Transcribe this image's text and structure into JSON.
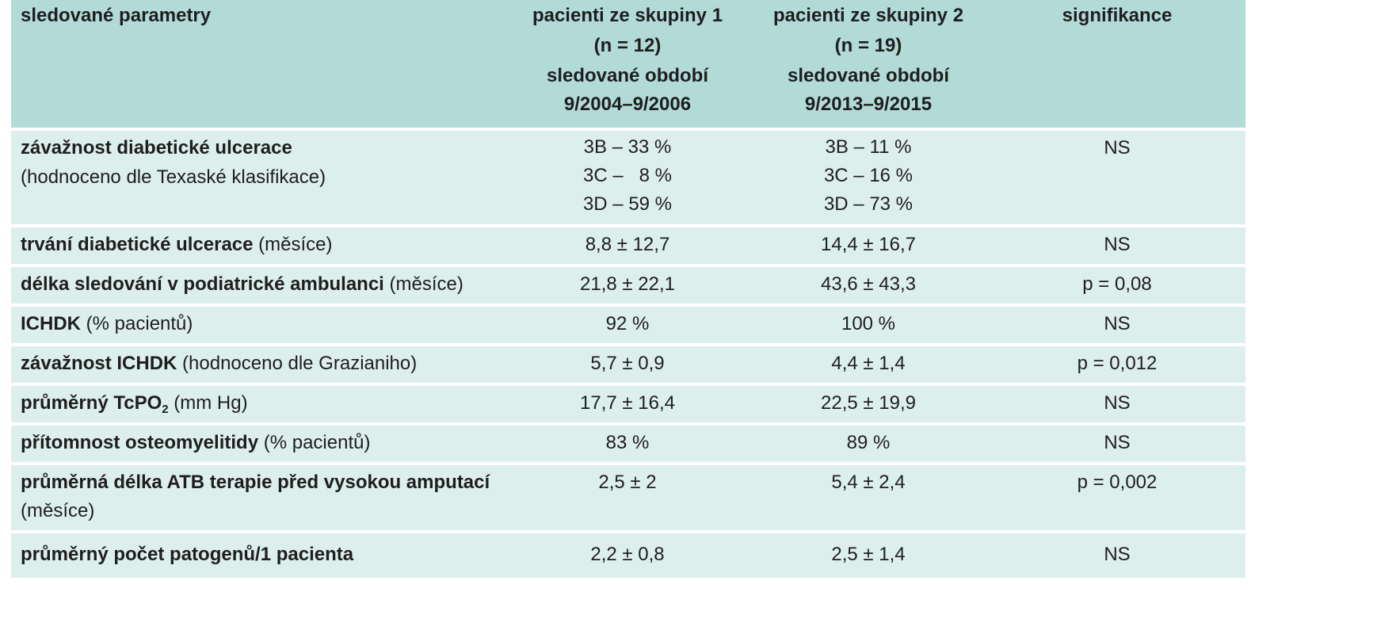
{
  "header": {
    "param": "sledované parametry",
    "group1": {
      "title": "pacienti ze skupiny 1",
      "n": "(n = 12)",
      "period_label": "sledované období",
      "period": "9/2004–9/2006"
    },
    "group2": {
      "title": "pacienti ze skupiny 2",
      "n": "(n = 19)",
      "period_label": "sledované období",
      "period": "9/2013–9/2015"
    },
    "sig": "signifikance"
  },
  "rows": {
    "r0": {
      "bold": "závažnost diabetické ulcerace",
      "note": "(hodnoceno dle Texaské klasifikace)",
      "g1": [
        "3B – 33 %",
        "3C –   8 %",
        "3D – 59 %"
      ],
      "g2": [
        "3B – 11 %",
        "3C – 16 %",
        "3D – 73 %"
      ],
      "sig": "NS"
    },
    "r1": {
      "bold": "trvání diabetické ulcerace",
      "note": " (měsíce)",
      "g1": "8,8 ± 12,7",
      "g2": "14,4 ± 16,7",
      "sig": "NS"
    },
    "r2": {
      "bold": "délka sledování v podiatrické ambulanci",
      "note": " (měsíce)",
      "g1": "21,8 ± 22,1",
      "g2": "43,6 ± 43,3",
      "sig": "p = 0,08"
    },
    "r3": {
      "bold": "ICHDK",
      "note": " (% pacientů)",
      "g1": "92 %",
      "g2": "100 %",
      "sig": "NS"
    },
    "r4": {
      "bold": "závažnost ICHDK",
      "note": " (hodnoceno dle Grazianiho)",
      "g1": "5,7 ± 0,9",
      "g2": "4,4 ± 1,4",
      "sig": "p = 0,012"
    },
    "r5": {
      "bold": "průměrný TcPO",
      "sub": "2",
      "note": " (mm Hg)",
      "g1": "17,7 ± 16,4",
      "g2": "22,5 ± 19,9",
      "sig": "NS"
    },
    "r6": {
      "bold": "přítomnost osteomyelitidy",
      "note": " (% pacientů)",
      "g1": "83 %",
      "g2": "89 %",
      "sig": "NS"
    },
    "r7": {
      "bold": "průměrná délka ATB terapie před vysokou amputací",
      "note": "(měsíce)",
      "g1": "2,5 ± 2",
      "g2": "5,4 ± 2,4",
      "sig": "p = 0,002"
    },
    "r8": {
      "bold": "průměrný počet patogenů/1 pacienta",
      "g1": "2,2 ± 0,8",
      "g2": "2,5 ± 1,4",
      "sig": "NS"
    }
  }
}
